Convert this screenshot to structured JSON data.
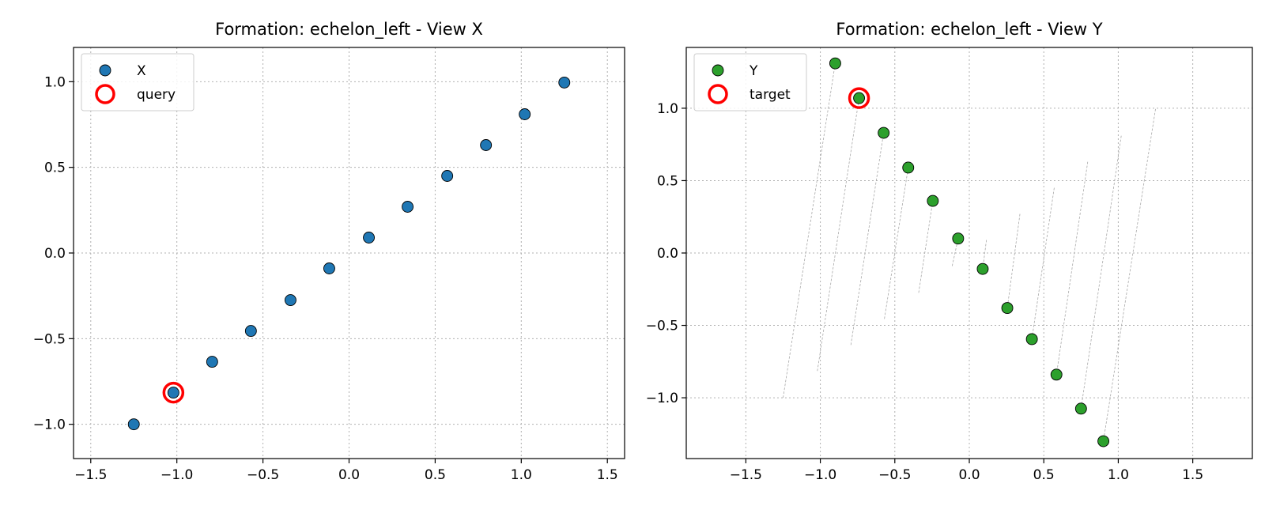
{
  "chart_data": [
    {
      "type": "scatter",
      "title": "Formation: echelon_left - View X",
      "xlabel": "",
      "ylabel": "",
      "xlim": [
        -1.6,
        1.6
      ],
      "ylim": [
        -1.2,
        1.2
      ],
      "xticks": [
        -1.5,
        -1.0,
        -0.5,
        0.0,
        0.5,
        1.0,
        1.5
      ],
      "xtick_labels": [
        "−1.5",
        "−1.0",
        "−0.5",
        "0.0",
        "0.5",
        "1.0",
        "1.5"
      ],
      "yticks": [
        -1.0,
        -0.5,
        0.0,
        0.5,
        1.0
      ],
      "ytick_labels": [
        "−1.0",
        "−0.5",
        "0.0",
        "0.5",
        "1.0"
      ],
      "grid": true,
      "legend_position": "top-left",
      "series": [
        {
          "name": "X",
          "color": "#1f77b4",
          "x": [
            -1.25,
            -1.02,
            -0.795,
            -0.57,
            -0.34,
            -0.115,
            0.115,
            0.34,
            0.57,
            0.795,
            1.02,
            1.25
          ],
          "y": [
            -1.0,
            -0.815,
            -0.635,
            -0.455,
            -0.275,
            -0.09,
            0.09,
            0.27,
            0.45,
            0.63,
            0.81,
            0.995
          ]
        }
      ],
      "highlight": {
        "name": "query",
        "color": "#ff0000",
        "x": -1.02,
        "y": -0.815
      }
    },
    {
      "type": "scatter",
      "title": "Formation: echelon_left - View Y",
      "xlabel": "",
      "ylabel": "",
      "xlim": [
        -1.9,
        1.9
      ],
      "ylim": [
        -1.42,
        1.42
      ],
      "xticks": [
        -1.5,
        -1.0,
        -0.5,
        0.0,
        0.5,
        1.0,
        1.5
      ],
      "xtick_labels": [
        "−1.5",
        "−1.0",
        "−0.5",
        "0.0",
        "0.5",
        "1.0",
        "1.5"
      ],
      "yticks": [
        -1.0,
        -0.5,
        0.0,
        0.5,
        1.0
      ],
      "ytick_labels": [
        "−1.0",
        "−0.5",
        "0.0",
        "0.5",
        "1.0"
      ],
      "grid": true,
      "legend_position": "top-left",
      "series": [
        {
          "name": "Y",
          "color": "#2ca02c",
          "x": [
            -0.9,
            -0.74,
            -0.575,
            -0.41,
            -0.245,
            -0.075,
            0.09,
            0.255,
            0.42,
            0.585,
            0.75,
            0.9
          ],
          "y": [
            1.31,
            1.07,
            0.83,
            0.59,
            0.36,
            0.1,
            -0.11,
            -0.38,
            -0.595,
            -0.84,
            -1.075,
            -1.3
          ]
        }
      ],
      "highlight": {
        "name": "target",
        "color": "#ff0000",
        "x": -0.74,
        "y": 1.07
      },
      "match_lines": {
        "from_x": [
          -1.25,
          -1.02,
          -0.795,
          -0.57,
          -0.34,
          -0.115,
          0.115,
          0.34,
          0.57,
          0.795,
          1.02,
          1.25
        ],
        "from_y": [
          -1.0,
          -0.815,
          -0.635,
          -0.455,
          -0.275,
          -0.09,
          0.09,
          0.27,
          0.45,
          0.63,
          0.81,
          0.995
        ]
      }
    }
  ]
}
